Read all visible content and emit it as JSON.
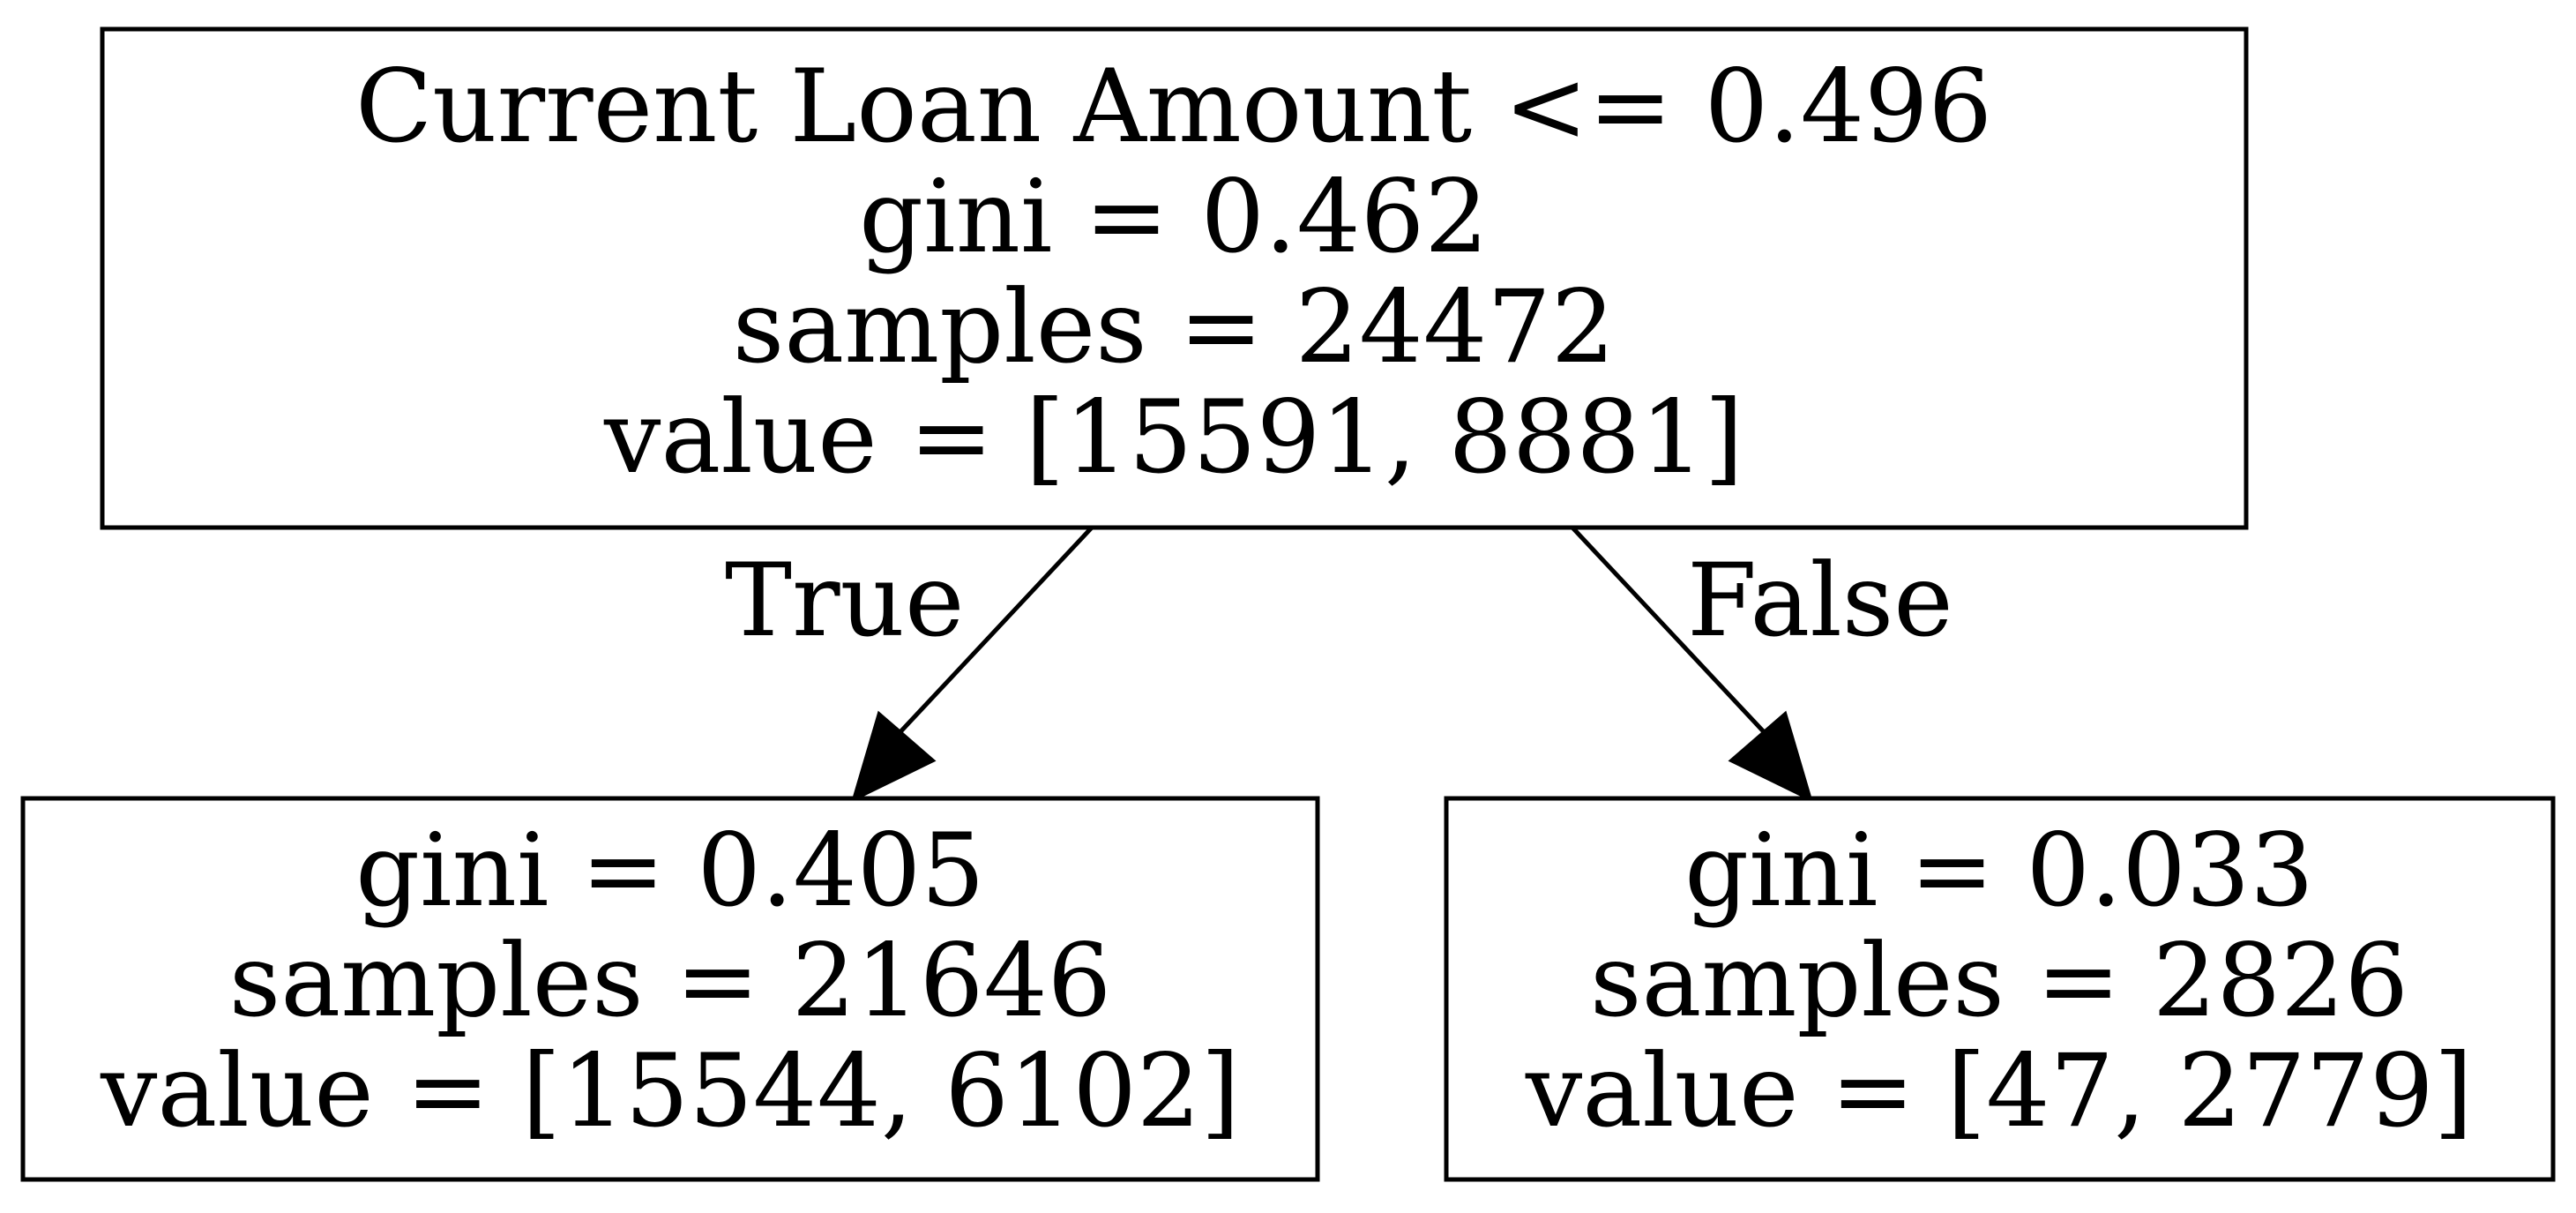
{
  "tree": {
    "root": {
      "lines": [
        "Current Loan Amount <= 0.496",
        "gini = 0.462",
        "samples = 24472",
        "value = [15591, 8881]"
      ]
    },
    "left": {
      "lines": [
        "gini = 0.405",
        "samples = 21646",
        "value = [15544, 6102]"
      ]
    },
    "right": {
      "lines": [
        "gini = 0.033",
        "samples = 2826",
        "value = [47, 2779]"
      ]
    },
    "edges": {
      "true_label": "True",
      "false_label": "False"
    }
  }
}
